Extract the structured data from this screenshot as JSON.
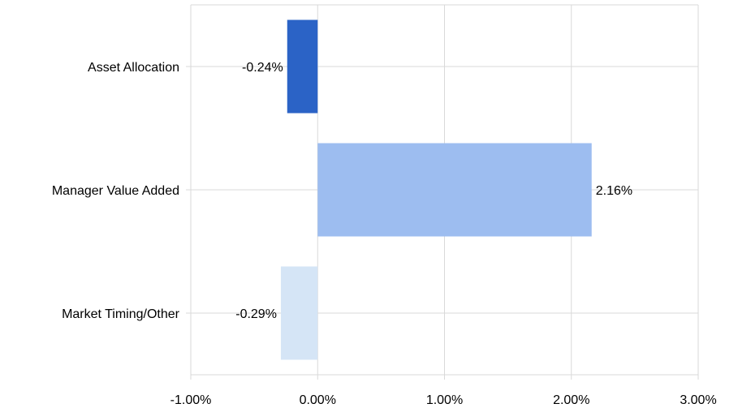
{
  "chart_data": {
    "type": "bar",
    "orientation": "horizontal",
    "title": "",
    "xlabel": "",
    "ylabel": "",
    "categories": [
      "Asset Allocation",
      "Manager Value Added",
      "Market Timing/Other"
    ],
    "values": [
      -0.24,
      2.16,
      -0.29
    ],
    "data_labels": [
      "-0.24%",
      "2.16%",
      "-0.29%"
    ],
    "bar_colors": [
      "#2b63c6",
      "#9dbdf0",
      "#d5e5f6"
    ],
    "xlim": [
      -1,
      3
    ],
    "x_ticks": [
      -1,
      0,
      1,
      2,
      3
    ],
    "x_tick_labels": [
      "-1.00%",
      "0.00%",
      "1.00%",
      "2.00%",
      "3.00%"
    ],
    "grid": true,
    "legend": "none"
  },
  "colors": {
    "grid": "#d9d9d9",
    "text": "#000000"
  }
}
